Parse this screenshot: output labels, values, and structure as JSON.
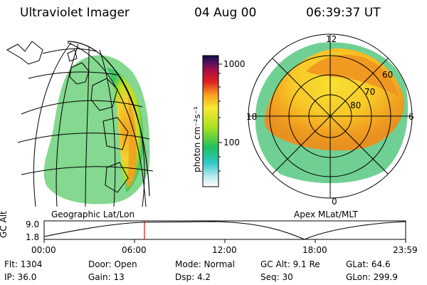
{
  "header": {
    "instrument": "Ultraviolet Imager",
    "date": "04 Aug 00",
    "time": "06:39:37 UT"
  },
  "colorbar": {
    "label": "photon cm⁻²s⁻¹",
    "ticks": [
      "1000",
      "100"
    ]
  },
  "left_panel": {
    "caption": "Geographic Lat/Lon"
  },
  "right_panel": {
    "caption": "Apex MLat/MLT",
    "mlt_labels": {
      "top": "12",
      "left": "18",
      "right": "6",
      "bottom": "0"
    },
    "lat_labels": [
      "60",
      "70",
      "80"
    ]
  },
  "altitude_strip": {
    "ylabel": "GC Alt",
    "ytick_top": "9.0",
    "ytick_bottom": "1.8",
    "xticks": [
      "00:00",
      "06:00",
      "12:00",
      "18:00",
      "23:59"
    ],
    "current_time_fraction": 0.2775
  },
  "info": {
    "flt": "Flt: 1304",
    "ip": "IP: 36.0",
    "door": "Door: Open",
    "gain": "Gain: 13",
    "mode": "Mode: Normal",
    "dsp": "Dsp:    4.2",
    "gcalt": "GC Alt: 9.1 Re",
    "seq": "Seq: 30",
    "glat": "GLat:  64.6",
    "glon": "GLon: 299.9"
  }
}
